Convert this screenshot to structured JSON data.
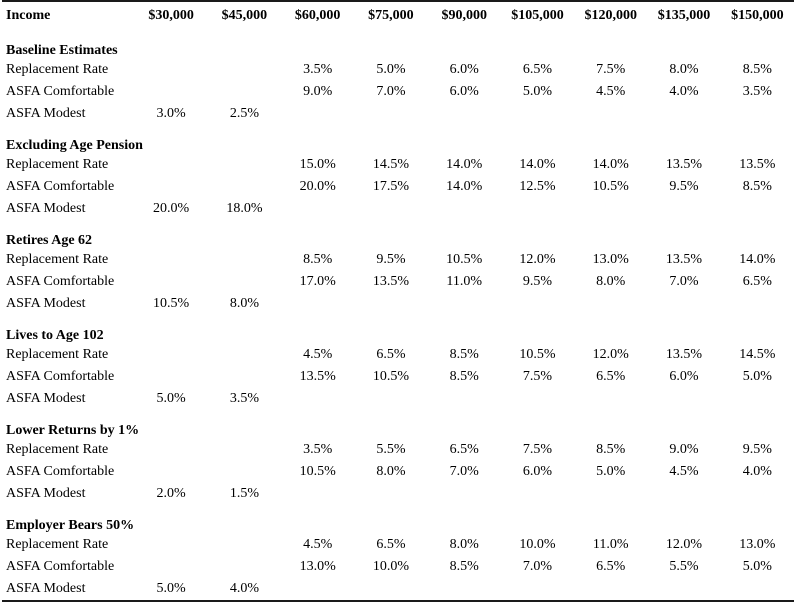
{
  "table": {
    "header": {
      "label": "Income",
      "columns": [
        "$30,000",
        "$45,000",
        "$60,000",
        "$75,000",
        "$90,000",
        "$105,000",
        "$120,000",
        "$135,000",
        "$150,000"
      ]
    },
    "sections": [
      {
        "title": "Baseline Estimates",
        "rows": [
          {
            "label": "Replacement Rate",
            "values": [
              "",
              "",
              "3.5%",
              "5.0%",
              "6.0%",
              "6.5%",
              "7.5%",
              "8.0%",
              "8.5%"
            ]
          },
          {
            "label": "ASFA Comfortable",
            "values": [
              "",
              "",
              "9.0%",
              "7.0%",
              "6.0%",
              "5.0%",
              "4.5%",
              "4.0%",
              "3.5%"
            ]
          },
          {
            "label": "ASFA Modest",
            "values": [
              "3.0%",
              "2.5%",
              "",
              "",
              "",
              "",
              "",
              "",
              ""
            ]
          }
        ]
      },
      {
        "title": "Excluding Age Pension",
        "rows": [
          {
            "label": "Replacement Rate",
            "values": [
              "",
              "",
              "15.0%",
              "14.5%",
              "14.0%",
              "14.0%",
              "14.0%",
              "13.5%",
              "13.5%"
            ]
          },
          {
            "label": "ASFA Comfortable",
            "values": [
              "",
              "",
              "20.0%",
              "17.5%",
              "14.0%",
              "12.5%",
              "10.5%",
              "9.5%",
              "8.5%"
            ]
          },
          {
            "label": "ASFA Modest",
            "values": [
              "20.0%",
              "18.0%",
              "",
              "",
              "",
              "",
              "",
              "",
              ""
            ]
          }
        ]
      },
      {
        "title": "Retires Age 62",
        "rows": [
          {
            "label": "Replacement Rate",
            "values": [
              "",
              "",
              "8.5%",
              "9.5%",
              "10.5%",
              "12.0%",
              "13.0%",
              "13.5%",
              "14.0%"
            ]
          },
          {
            "label": "ASFA Comfortable",
            "values": [
              "",
              "",
              "17.0%",
              "13.5%",
              "11.0%",
              "9.5%",
              "8.0%",
              "7.0%",
              "6.5%"
            ]
          },
          {
            "label": "ASFA Modest",
            "values": [
              "10.5%",
              "8.0%",
              "",
              "",
              "",
              "",
              "",
              "",
              ""
            ]
          }
        ]
      },
      {
        "title": "Lives to Age 102",
        "rows": [
          {
            "label": "Replacement Rate",
            "values": [
              "",
              "",
              "4.5%",
              "6.5%",
              "8.5%",
              "10.5%",
              "12.0%",
              "13.5%",
              "14.5%"
            ]
          },
          {
            "label": "ASFA Comfortable",
            "values": [
              "",
              "",
              "13.5%",
              "10.5%",
              "8.5%",
              "7.5%",
              "6.5%",
              "6.0%",
              "5.0%"
            ]
          },
          {
            "label": "ASFA Modest",
            "values": [
              "5.0%",
              "3.5%",
              "",
              "",
              "",
              "",
              "",
              "",
              ""
            ]
          }
        ]
      },
      {
        "title": "Lower Returns by 1%",
        "rows": [
          {
            "label": "Replacement Rate",
            "values": [
              "",
              "",
              "3.5%",
              "5.5%",
              "6.5%",
              "7.5%",
              "8.5%",
              "9.0%",
              "9.5%"
            ]
          },
          {
            "label": "ASFA Comfortable",
            "values": [
              "",
              "",
              "10.5%",
              "8.0%",
              "7.0%",
              "6.0%",
              "5.0%",
              "4.5%",
              "4.0%"
            ]
          },
          {
            "label": "ASFA Modest",
            "values": [
              "2.0%",
              "1.5%",
              "",
              "",
              "",
              "",
              "",
              "",
              ""
            ]
          }
        ]
      },
      {
        "title": "Employer Bears 50%",
        "rows": [
          {
            "label": "Replacement Rate",
            "values": [
              "",
              "",
              "4.5%",
              "6.5%",
              "8.0%",
              "10.0%",
              "11.0%",
              "12.0%",
              "13.0%"
            ]
          },
          {
            "label": "ASFA Comfortable",
            "values": [
              "",
              "",
              "13.0%",
              "10.0%",
              "8.5%",
              "7.0%",
              "6.5%",
              "5.5%",
              "5.0%"
            ]
          },
          {
            "label": "ASFA Modest",
            "values": [
              "5.0%",
              "4.0%",
              "",
              "",
              "",
              "",
              "",
              "",
              ""
            ]
          }
        ]
      }
    ]
  }
}
